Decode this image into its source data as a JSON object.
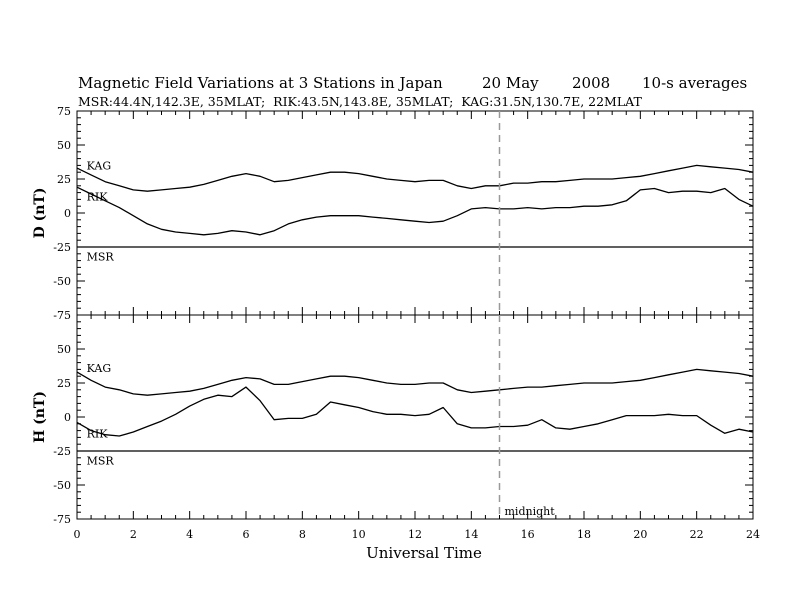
{
  "chart_data": {
    "type": "line",
    "title": "Magnetic Field Variations at 3 Stations in Japan",
    "date": "20 May",
    "year": "2008",
    "averaging": "10-s averages",
    "subtitle": "MSR:44.4N,142.3E, 35MLAT;  RIK:43.5N,143.8E, 35MLAT;  KAG:31.5N,130.7E, 22MLAT",
    "xlabel": "Universal Time",
    "xlim": [
      0,
      24
    ],
    "xticks": [
      0,
      2,
      4,
      6,
      8,
      10,
      12,
      14,
      16,
      18,
      20,
      22,
      24
    ],
    "x_minor_step": 0.5,
    "marker": {
      "x": 15,
      "label": "midnight",
      "style": "dashed",
      "color": "#999999"
    },
    "grid": false,
    "panels": [
      {
        "ylabel": "D (nT)",
        "ylim": [
          -75,
          75
        ],
        "yticks": [
          75,
          50,
          25,
          0,
          -25,
          -50,
          -75
        ],
        "ytick_labels": [
          "75",
          "50",
          "25",
          "0",
          "-25",
          "-50",
          "-75"
        ],
        "series": [
          {
            "name": "KAG",
            "color": "#000000",
            "x": [
              0,
              0.5,
              1,
              1.5,
              2,
              2.5,
              3,
              3.5,
              4,
              4.5,
              5,
              5.5,
              6,
              6.5,
              7,
              7.5,
              8,
              8.5,
              9,
              9.5,
              10,
              10.5,
              11,
              11.5,
              12,
              12.5,
              13,
              13.5,
              14,
              14.5,
              15,
              15.5,
              16,
              16.5,
              17,
              17.5,
              18,
              18.5,
              19,
              19.5,
              20,
              20.5,
              21,
              21.5,
              22,
              22.5,
              23,
              23.5,
              24
            ],
            "y": [
              33,
              28,
              23,
              20,
              17,
              16,
              17,
              18,
              19,
              21,
              24,
              27,
              29,
              27,
              23,
              24,
              26,
              28,
              30,
              30,
              29,
              27,
              25,
              24,
              23,
              24,
              24,
              20,
              18,
              20,
              20,
              22,
              22,
              23,
              23,
              24,
              25,
              25,
              25,
              26,
              27,
              29,
              31,
              33,
              35,
              34,
              33,
              32,
              30
            ]
          },
          {
            "name": "RIK",
            "color": "#000000",
            "x": [
              0,
              0.5,
              1,
              1.5,
              2,
              2.5,
              3,
              3.5,
              4,
              4.5,
              5,
              5.5,
              6,
              6.5,
              7,
              7.5,
              8,
              8.5,
              9,
              9.5,
              10,
              10.5,
              11,
              11.5,
              12,
              12.5,
              13,
              13.5,
              14,
              14.5,
              15,
              15.5,
              16,
              16.5,
              17,
              17.5,
              18,
              18.5,
              19,
              19.5,
              20,
              20.5,
              21,
              21.5,
              22,
              22.5,
              23,
              23.5,
              24
            ],
            "y": [
              19,
              14,
              9,
              4,
              -2,
              -8,
              -12,
              -14,
              -15,
              -16,
              -15,
              -13,
              -14,
              -16,
              -13,
              -8,
              -5,
              -3,
              -2,
              -2,
              -2,
              -3,
              -4,
              -5,
              -6,
              -7,
              -6,
              -2,
              3,
              4,
              3,
              3,
              4,
              3,
              4,
              4,
              5,
              5,
              6,
              9,
              17,
              18,
              15,
              16,
              16,
              15,
              18,
              10,
              5
            ]
          },
          {
            "name": "MSR",
            "color": "#000000",
            "x": [
              0,
              24
            ],
            "y": [
              -25,
              -25
            ]
          }
        ],
        "labels": [
          {
            "text": "KAG",
            "x": 0.2,
            "y": 35
          },
          {
            "text": "RIK",
            "x": 0.2,
            "y": 12
          },
          {
            "text": "MSR",
            "x": 0.2,
            "y": -32
          }
        ]
      },
      {
        "ylabel": "H (nT)",
        "ylim": [
          -75,
          75
        ],
        "yticks": [
          50,
          25,
          0,
          -25,
          -50,
          -75
        ],
        "ytick_labels": [
          "50",
          "25",
          "0",
          "-25",
          "-50",
          "-75"
        ],
        "series": [
          {
            "name": "KAG",
            "color": "#000000",
            "x": [
              0,
              0.5,
              1,
              1.5,
              2,
              2.5,
              3,
              3.5,
              4,
              4.5,
              5,
              5.5,
              6,
              6.5,
              7,
              7.5,
              8,
              8.5,
              9,
              9.5,
              10,
              10.5,
              11,
              11.5,
              12,
              12.5,
              13,
              13.5,
              14,
              14.5,
              15,
              15.5,
              16,
              16.5,
              17,
              17.5,
              18,
              18.5,
              19,
              19.5,
              20,
              20.5,
              21,
              21.5,
              22,
              22.5,
              23,
              23.5,
              24
            ],
            "y": [
              33,
              27,
              22,
              20,
              17,
              16,
              17,
              18,
              19,
              21,
              24,
              27,
              29,
              28,
              24,
              24,
              26,
              28,
              30,
              30,
              29,
              27,
              25,
              24,
              24,
              25,
              25,
              20,
              18,
              19,
              20,
              21,
              22,
              22,
              23,
              24,
              25,
              25,
              25,
              26,
              27,
              29,
              31,
              33,
              35,
              34,
              33,
              32,
              30
            ]
          },
          {
            "name": "RIK",
            "color": "#000000",
            "x": [
              0,
              0.5,
              1,
              1.5,
              2,
              2.5,
              3,
              3.5,
              4,
              4.5,
              5,
              5.5,
              6,
              6.5,
              7,
              7.5,
              8,
              8.5,
              9,
              9.5,
              10,
              10.5,
              11,
              11.5,
              12,
              12.5,
              13,
              13.5,
              14,
              14.5,
              15,
              15.5,
              16,
              16.5,
              17,
              17.5,
              18,
              18.5,
              19,
              19.5,
              20,
              20.5,
              21,
              21.5,
              22,
              22.5,
              23,
              23.5,
              24
            ],
            "y": [
              -4,
              -10,
              -13,
              -14,
              -11,
              -7,
              -3,
              2,
              8,
              13,
              16,
              15,
              22,
              12,
              -2,
              -1,
              -1,
              2,
              11,
              9,
              7,
              4,
              2,
              2,
              1,
              2,
              7,
              -5,
              -8,
              -8,
              -7,
              -7,
              -6,
              -2,
              -8,
              -9,
              -7,
              -5,
              -2,
              1,
              1,
              1,
              2,
              1,
              1,
              -6,
              -12,
              -9,
              -11
            ]
          },
          {
            "name": "MSR",
            "color": "#000000",
            "x": [
              0,
              24
            ],
            "y": [
              -25,
              -25
            ]
          }
        ],
        "labels": [
          {
            "text": "KAG",
            "x": 0.2,
            "y": 36
          },
          {
            "text": "RIK",
            "x": 0.2,
            "y": -12
          },
          {
            "text": "MSR",
            "x": 0.2,
            "y": -32
          }
        ]
      }
    ]
  }
}
